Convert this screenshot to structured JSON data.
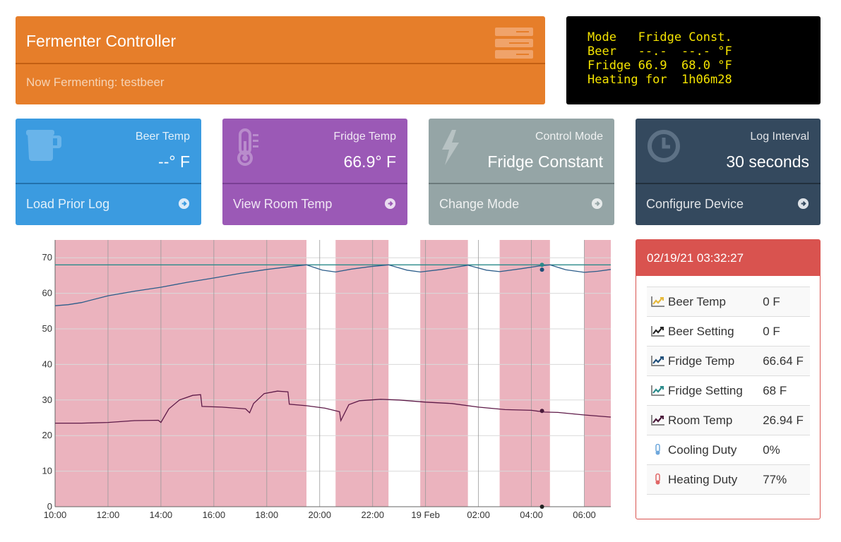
{
  "header": {
    "title": "Fermenter Controller",
    "subtitle": "Now Fermenting: testbeer"
  },
  "lcd": {
    "lines": [
      "Mode   Fridge Const.",
      "Beer   --.-  --.- °F",
      "Fridge 66.9  68.0 °F",
      "Heating for  1h06m28"
    ]
  },
  "tiles": [
    {
      "label": "Beer Temp",
      "value": "--° F",
      "footer": "Load Prior Log",
      "icon": "beer-mug-icon"
    },
    {
      "label": "Fridge Temp",
      "value": "66.9° F",
      "footer": "View Room Temp",
      "icon": "thermometer-icon"
    },
    {
      "label": "Control Mode",
      "value": "Fridge Constant",
      "footer": "Change Mode",
      "icon": "lightning-icon"
    },
    {
      "label": "Log Interval",
      "value": "30 seconds",
      "footer": "Configure Device",
      "icon": "clock-icon"
    }
  ],
  "status": {
    "timestamp": "02/19/21 03:32:27",
    "rows": [
      {
        "label": "Beer Temp",
        "value": "0 F",
        "icon": "chart-line-icon",
        "color": "#e6b83a"
      },
      {
        "label": "Beer Setting",
        "value": "0 F",
        "icon": "chart-line-icon",
        "color": "#222222"
      },
      {
        "label": "Fridge Temp",
        "value": "66.64 F",
        "icon": "chart-line-icon",
        "color": "#1f4e79"
      },
      {
        "label": "Fridge Setting",
        "value": "68 F",
        "icon": "chart-line-icon",
        "color": "#2a8a8a"
      },
      {
        "label": "Room Temp",
        "value": "26.94 F",
        "icon": "chart-line-icon",
        "color": "#4a1a3a"
      },
      {
        "label": "Cooling Duty",
        "value": "0%",
        "icon": "thermometer-cold-icon",
        "color": "#6fa8dc"
      },
      {
        "label": "Heating Duty",
        "value": "77%",
        "icon": "thermometer-hot-icon",
        "color": "#e06666"
      }
    ]
  },
  "colors": {
    "orange": "#e67e2a",
    "blue": "#3b9be0",
    "purple": "#9b59b6",
    "gray": "#95a5a6",
    "navy": "#34495e",
    "red": "#d9534f",
    "heating_band": "#ebb3be",
    "lcd_text": "#f4e300"
  },
  "chart_data": {
    "type": "line",
    "x_tick_labels": [
      "10:00",
      "12:00",
      "14:00",
      "16:00",
      "18:00",
      "20:00",
      "22:00",
      "19 Feb",
      "02:00",
      "04:00",
      "06:00"
    ],
    "x_tick_hours": [
      10,
      12,
      14,
      16,
      18,
      20,
      22,
      24,
      26,
      28,
      30
    ],
    "xlim_hours": [
      10,
      31
    ],
    "ylim": [
      0,
      75
    ],
    "y_ticks": [
      0,
      10,
      20,
      30,
      40,
      50,
      60,
      70
    ],
    "grid": true,
    "heating_periods_hours": [
      [
        10,
        19.5
      ],
      [
        20.6,
        22.6
      ],
      [
        23.8,
        25.6
      ],
      [
        26.8,
        28.7
      ],
      [
        30.0,
        31
      ]
    ],
    "series": [
      {
        "name": "Fridge Setting",
        "color": "#2a8a8a",
        "x_hours": [
          10,
          31
        ],
        "y": [
          68,
          68
        ]
      },
      {
        "name": "Fridge Temp",
        "color": "#2c5d8a",
        "x_hours": [
          10,
          10.5,
          11,
          12,
          13,
          14,
          15,
          16,
          17,
          18,
          19,
          19.5,
          20.1,
          20.6,
          21.2,
          21.9,
          22.6,
          23.3,
          23.8,
          24.6,
          25.6,
          26.3,
          26.8,
          27.6,
          28.3,
          28.7,
          29.3,
          30.0,
          30.5,
          31
        ],
        "y": [
          56.5,
          56.8,
          57.4,
          59.3,
          60.6,
          61.7,
          63.1,
          64.3,
          65.6,
          66.7,
          67.6,
          68.0,
          66.5,
          66.0,
          66.8,
          67.5,
          68.0,
          66.5,
          66.0,
          66.7,
          67.9,
          66.5,
          66.1,
          66.9,
          67.7,
          68.0,
          66.6,
          65.9,
          66.2,
          66.7
        ]
      },
      {
        "name": "Room Temp",
        "color": "#5e1a48",
        "x_hours": [
          10,
          11,
          12,
          13,
          13.9,
          14.0,
          14.3,
          14.7,
          15.2,
          15.5,
          15.55,
          16.3,
          17.2,
          17.35,
          17.5,
          17.9,
          18.4,
          18.8,
          18.85,
          19.5,
          20.2,
          20.75,
          20.8,
          21.1,
          21.5,
          22.3,
          23.0,
          24.0,
          25.0,
          26.0,
          27.0,
          28.0,
          28.5,
          29.0,
          30.0,
          31.0
        ],
        "y": [
          23.5,
          23.5,
          23.7,
          24.2,
          24.3,
          23.7,
          27.5,
          30.0,
          31.3,
          31.5,
          28.2,
          28.0,
          27.5,
          26.4,
          29.0,
          31.8,
          32.5,
          32.3,
          28.8,
          28.4,
          27.7,
          26.7,
          24.2,
          28.7,
          29.8,
          30.2,
          30.0,
          29.4,
          29.0,
          28.0,
          27.3,
          27.1,
          26.6,
          26.5,
          25.8,
          25.2
        ]
      }
    ],
    "markers": [
      {
        "x_hours": 28.4,
        "y": 68,
        "color": "#2a8a8a"
      },
      {
        "x_hours": 28.4,
        "y": 66.64,
        "color": "#1f4e79"
      },
      {
        "x_hours": 28.4,
        "y": 26.94,
        "color": "#4a1a3a"
      },
      {
        "x_hours": 28.4,
        "y": 0,
        "color": "#222222"
      }
    ]
  }
}
